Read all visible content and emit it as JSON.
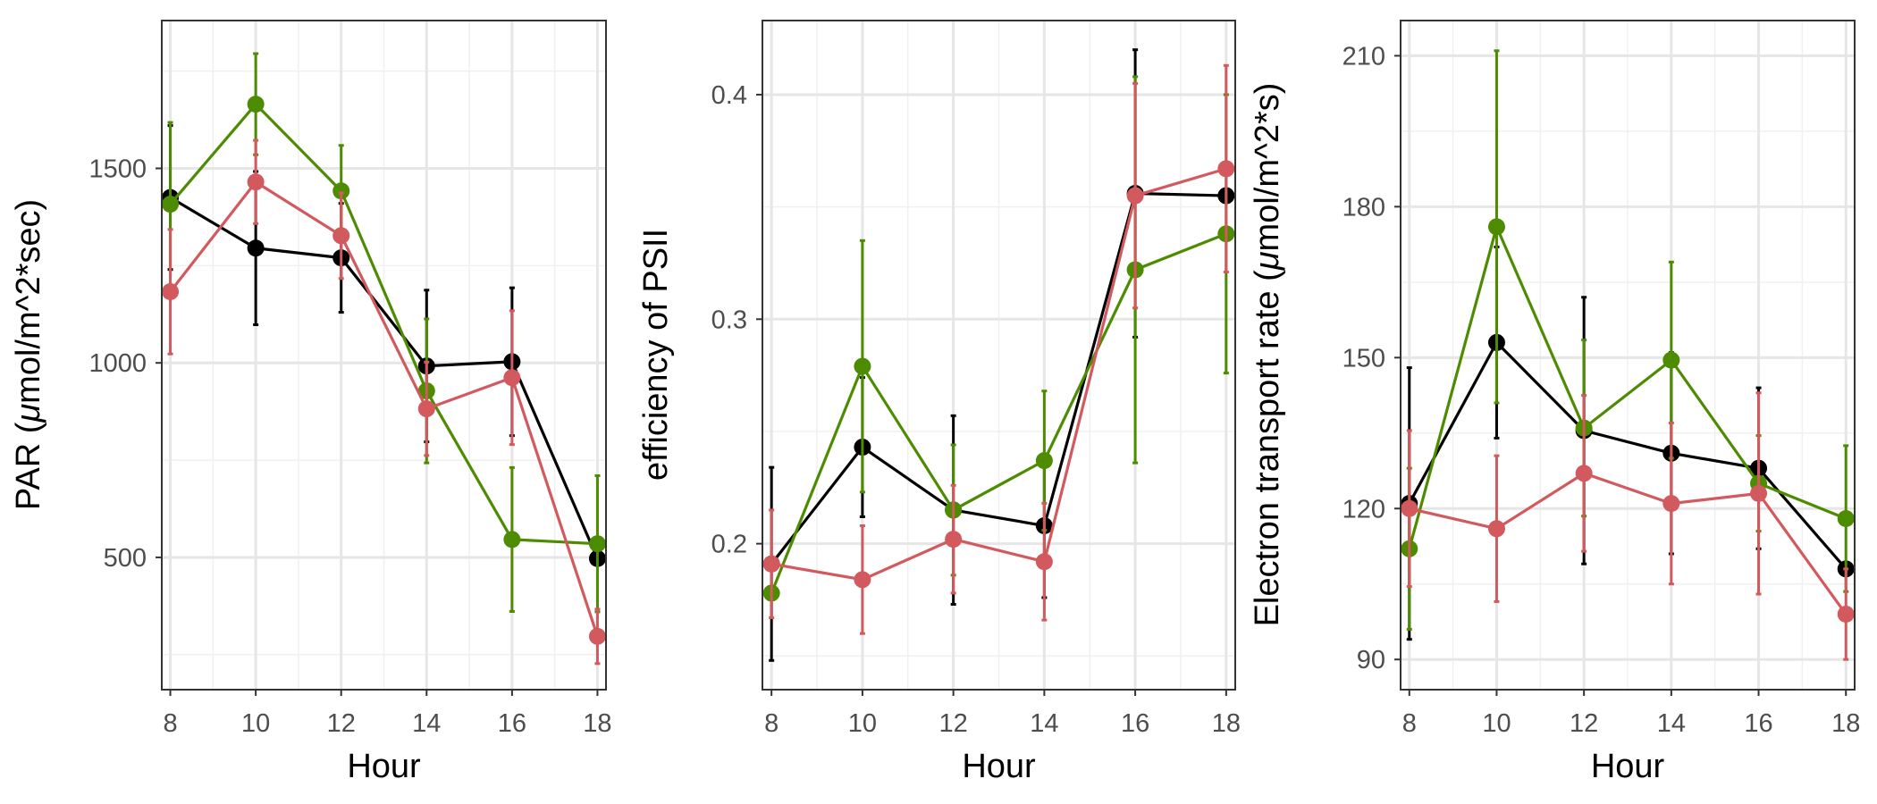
{
  "chart_data": [
    {
      "type": "line",
      "panel": "left",
      "xlabel": "Hour",
      "ylabel_prefix": "PAR (",
      "ylabel_mu": "μ",
      "ylabel_suffix": "mol/m^2*sec)",
      "x": [
        8,
        10,
        12,
        14,
        16,
        18
      ],
      "xlim": [
        7.8,
        18.2
      ],
      "ylim": [
        160,
        1880
      ],
      "yticks": [
        500,
        1000,
        1500
      ],
      "yticks_minor": [
        250,
        750,
        1250,
        1750
      ],
      "grid": true,
      "legend": "none",
      "series": [
        {
          "color": "#000000",
          "values": [
            1425,
            1295,
            1270,
            992,
            1003,
            497
          ],
          "err": [
            185,
            197,
            140,
            195,
            190,
            0
          ]
        },
        {
          "color": "#4d8c00",
          "values": [
            1408,
            1665,
            1442,
            928,
            546,
            535
          ],
          "err": [
            210,
            130,
            117,
            185,
            185,
            175
          ]
        },
        {
          "color": "#d2595d",
          "values": [
            1183,
            1465,
            1327,
            882,
            962,
            297
          ],
          "err": [
            160,
            107,
            110,
            120,
            172,
            70
          ]
        }
      ]
    },
    {
      "type": "line",
      "panel": "middle",
      "xlabel": "Hour",
      "ylabel": "efficiency of PSII",
      "x": [
        8,
        10,
        12,
        14,
        16,
        18
      ],
      "xlim": [
        7.8,
        18.2
      ],
      "ylim": [
        0.135,
        0.433
      ],
      "yticks": [
        0.2,
        0.3,
        0.4
      ],
      "ytick_labels": [
        "0.2",
        "0.3",
        "0.4"
      ],
      "yticks_minor": [
        0.15,
        0.25,
        0.35
      ],
      "grid": true,
      "legend": "none",
      "series": [
        {
          "color": "#000000",
          "values": [
            0.191,
            0.243,
            0.215,
            0.208,
            0.356,
            0.355
          ],
          "err": [
            0.043,
            0.031,
            0.042,
            0.032,
            0.064,
            0.0
          ]
        },
        {
          "color": "#4d8c00",
          "values": [
            0.178,
            0.279,
            0.215,
            0.237,
            0.322,
            0.338
          ],
          "err": [
            0.0,
            0.056,
            0.029,
            0.031,
            0.086,
            0.062
          ]
        },
        {
          "color": "#d2595d",
          "values": [
            0.191,
            0.184,
            0.202,
            0.192,
            0.355,
            0.367
          ],
          "err": [
            0.024,
            0.024,
            0.024,
            0.026,
            0.05,
            0.046
          ]
        }
      ]
    },
    {
      "type": "line",
      "panel": "right",
      "xlabel": "Hour",
      "ylabel_prefix": "Electron transport rate (",
      "ylabel_mu": "μ",
      "ylabel_suffix": "mol/m^2*s)",
      "x": [
        8,
        10,
        12,
        14,
        16,
        18
      ],
      "xlim": [
        7.8,
        18.2
      ],
      "ylim": [
        84,
        217
      ],
      "yticks": [
        90,
        120,
        150,
        180,
        210
      ],
      "yticks_minor": [
        105,
        135,
        165,
        195
      ],
      "grid": true,
      "legend": "none",
      "series": [
        {
          "color": "#000000",
          "values": [
            121,
            153,
            135.5,
            131,
            128,
            108
          ],
          "err": [
            27,
            19,
            26.5,
            20,
            16,
            0
          ]
        },
        {
          "color": "#4d8c00",
          "values": [
            112,
            176,
            136,
            149.5,
            125,
            118
          ],
          "err": [
            16,
            35,
            17.5,
            19.5,
            9.5,
            14.5
          ]
        },
        {
          "color": "#d2595d",
          "values": [
            120,
            116,
            127,
            121,
            123,
            99
          ],
          "err": [
            15.5,
            14.5,
            15.5,
            16,
            20,
            9
          ]
        }
      ]
    }
  ]
}
